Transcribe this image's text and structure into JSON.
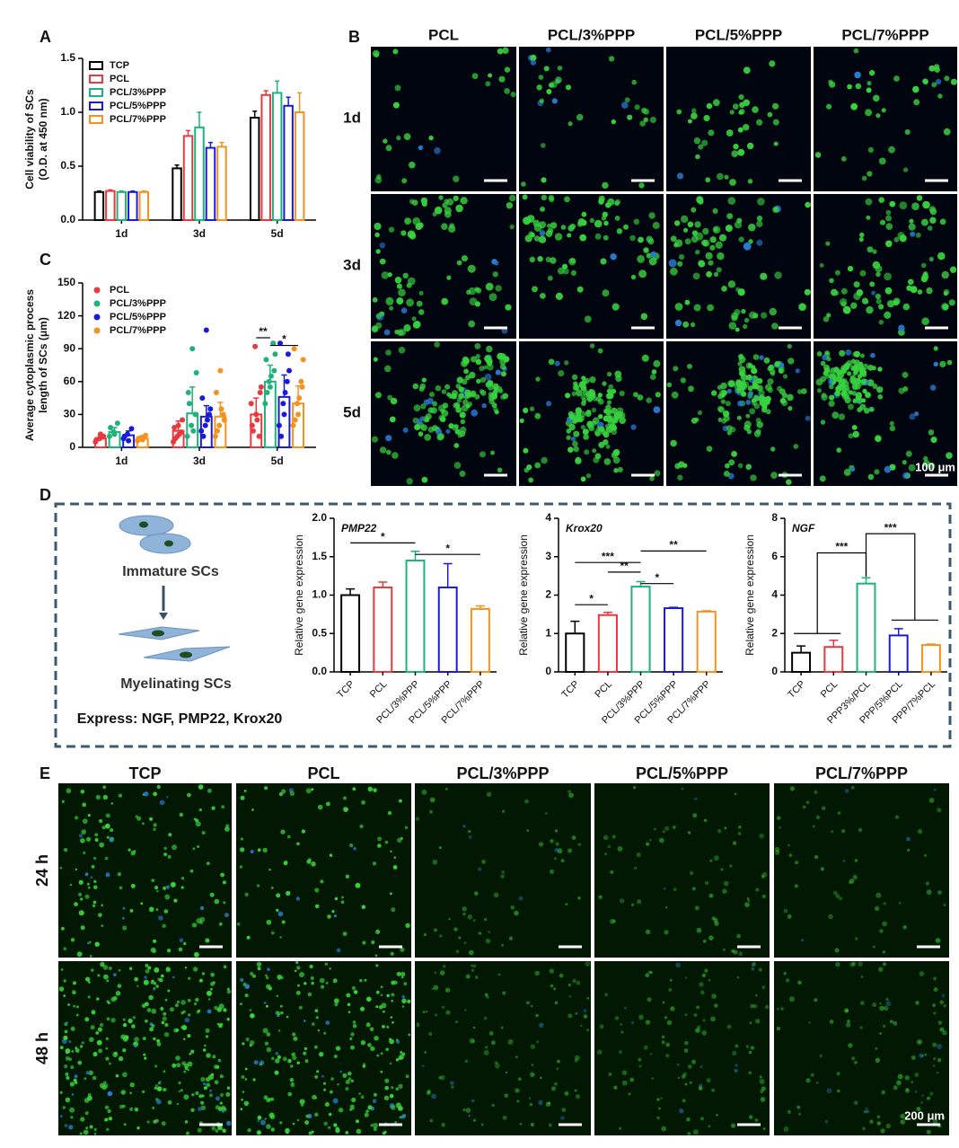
{
  "panel_labels": [
    "A",
    "B",
    "C",
    "D",
    "E"
  ],
  "chart_data": [
    {
      "type": "bar",
      "y_label": [
        "Cell viability of SCs",
        "(O.D. at 450 nm)"
      ],
      "legend": "upper left",
      "categories": [
        "1d",
        "3d",
        "5d"
      ],
      "ylim": [
        0,
        1.5
      ],
      "yticks": [
        {
          "value": 0,
          "label": "0.0"
        },
        0.5,
        {
          "value": 1,
          "label": "1.0"
        },
        1.5
      ],
      "series": [
        {
          "name": "TCP",
          "color": "#000000",
          "values": [
            0.26,
            0.48,
            0.95
          ],
          "errors": [
            0.01,
            0.03,
            0.06
          ]
        },
        {
          "name": "PCL",
          "color": "#e8393f",
          "values": [
            0.27,
            0.78,
            1.16
          ],
          "errors": [
            0.01,
            0.05,
            0.04
          ]
        },
        {
          "name": "PCL/3%PPP",
          "color": "#1db37a",
          "values": [
            0.26,
            0.86,
            1.18
          ],
          "errors": [
            0.01,
            0.14,
            0.11
          ]
        },
        {
          "name": "PCL/5%PPP",
          "color": "#1a1adb",
          "values": [
            0.26,
            0.67,
            1.06
          ],
          "errors": [
            0.01,
            0.05,
            0.08
          ]
        },
        {
          "name": "PCL/7%PPP",
          "color": "#f5911e",
          "values": [
            0.26,
            0.68,
            1.0
          ],
          "errors": [
            0.01,
            0.04,
            0.18
          ]
        }
      ]
    },
    {
      "type": "bar",
      "y_label": [
        "Average cytoplasmic process",
        "length of SCs (μm)"
      ],
      "legend": "upper left",
      "categories": [
        "1d",
        "3d",
        "5d"
      ],
      "ylim": [
        0,
        150
      ],
      "yticks": [
        0,
        30,
        60,
        90,
        120,
        150
      ],
      "annotations": [
        "**",
        "*"
      ],
      "series": [
        {
          "name": "PCL",
          "color": "#e8393f",
          "values": [
            8,
            15,
            30
          ],
          "errors": [
            3,
            9,
            15
          ],
          "points": [
            [
              5,
              8,
              10,
              7,
              12
            ],
            [
              5,
              10,
              14,
              18,
              20,
              25,
              8,
              12
            ],
            [
              40,
              92,
              10,
              20,
              30,
              50,
              15,
              25,
              55
            ]
          ]
        },
        {
          "name": "PCL/3%PPP",
          "color": "#1db37a",
          "values": [
            14,
            31,
            60
          ],
          "errors": [
            4,
            24,
            15
          ],
          "points": [
            [
              10,
              14,
              22,
              18,
              12
            ],
            [
              10,
              20,
              30,
              50,
              90,
              68,
              40,
              15
            ],
            [
              40,
              60,
              95,
              80,
              55,
              70,
              50,
              65,
              85
            ]
          ]
        },
        {
          "name": "PCL/5%PPP",
          "color": "#1a1adb",
          "values": [
            11,
            28,
            46
          ],
          "errors": [
            4,
            10,
            20
          ],
          "points": [
            [
              8,
              12,
              17,
              10,
              6
            ],
            [
              15,
              20,
              30,
              45,
              107,
              35,
              10,
              25
            ],
            [
              20,
              40,
              60,
              95,
              30,
              85,
              10,
              50,
              70
            ]
          ]
        },
        {
          "name": "PCL/7%PPP",
          "color": "#f5911e",
          "values": [
            8,
            28,
            40
          ],
          "errors": [
            2,
            13,
            16
          ],
          "points": [
            [
              6,
              9,
              11,
              8,
              7
            ],
            [
              10,
              20,
              30,
              50,
              70,
              25,
              15,
              35
            ],
            [
              20,
              40,
              60,
              90,
              30,
              55,
              25,
              45,
              80
            ]
          ]
        }
      ]
    },
    {
      "type": "bar",
      "title": "PMP22",
      "y_label": "Relative gene expression",
      "categories": [
        "TCP",
        "PCL",
        "PCL/3%PPP",
        "PCL/5%PPP",
        "PCL/7%PPP"
      ],
      "values": [
        1.0,
        1.1,
        1.45,
        1.1,
        0.82
      ],
      "errors": [
        0.08,
        0.07,
        0.12,
        0.31,
        0.04
      ],
      "colors": [
        "#000000",
        "#e8393f",
        "#1db37a",
        "#1a1adb",
        "#f5911e"
      ],
      "ylim": [
        0,
        2
      ],
      "yticks": [
        {
          "value": 0,
          "label": "0.0"
        },
        0.5,
        {
          "value": 1,
          "label": "1.0"
        },
        1.5,
        {
          "value": 2,
          "label": "2.0"
        }
      ],
      "annotations": [
        "*",
        "*"
      ]
    },
    {
      "type": "bar",
      "title": "Krox20",
      "y_label": "Relative gene expression",
      "categories": [
        "TCP",
        "PCL",
        "PCL/3%PPP",
        "PCL/5%PPP",
        "PCL/7%PPP"
      ],
      "values": [
        1.0,
        1.48,
        2.22,
        1.66,
        1.57
      ],
      "errors": [
        0.32,
        0.07,
        0.13,
        0.02,
        0.02
      ],
      "colors": [
        "#000000",
        "#e8393f",
        "#1db37a",
        "#1a1adb",
        "#f5911e"
      ],
      "ylim": [
        0,
        4
      ],
      "yticks": [
        0,
        1,
        2,
        3,
        4
      ],
      "annotations": [
        "*",
        "***",
        "**",
        "*",
        "**"
      ]
    },
    {
      "type": "bar",
      "title": "NGF",
      "y_label": "Relative gene expression",
      "categories": [
        "TCP",
        "PCL",
        "PPP3%/PCL",
        "PPP/5%PCL",
        "PPP/7%PCL"
      ],
      "values": [
        1.0,
        1.3,
        4.6,
        1.9,
        1.4
      ],
      "errors": [
        0.35,
        0.35,
        0.3,
        0.35,
        0.05
      ],
      "colors": [
        "#000000",
        "#e8393f",
        "#1db37a",
        "#1a1adb",
        "#f5911e"
      ],
      "ylim": [
        0,
        8
      ],
      "yticks": [
        0,
        2,
        4,
        6,
        8
      ],
      "annotations": [
        "***",
        "***"
      ]
    }
  ],
  "panel_b": {
    "columns": [
      "PCL",
      "PCL/3%PPP",
      "PCL/5%PPP",
      "PCL/7%PPP"
    ],
    "rows": [
      "1d",
      "3d",
      "5d"
    ],
    "scale_bar": "100 μm"
  },
  "panel_d_diagram": {
    "top": "Immature SCs",
    "bottom": "Myelinating SCs",
    "note": "Express: NGF, PMP22, Krox20"
  },
  "panel_e": {
    "columns": [
      "TCP",
      "PCL",
      "PCL/3%PPP",
      "PCL/5%PPP",
      "PCL/7%PPP"
    ],
    "rows": [
      "24 h",
      "48 h"
    ],
    "scale_bar": "200 μm"
  }
}
